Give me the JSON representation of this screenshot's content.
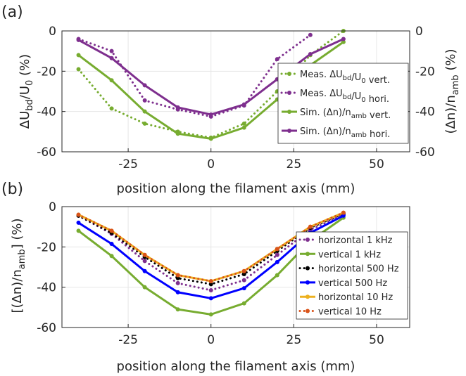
{
  "figure": {
    "colors": {
      "green": "#77ac30",
      "purple": "#7e2f8e",
      "black": "#000000",
      "blue": "#0000ff",
      "yellow": "#edb120",
      "orange": "#d95319"
    }
  },
  "chart_data": [
    {
      "type": "line",
      "panel_label": "(a)",
      "xlabel": "position along the filament axis (mm)",
      "ylabel_left": "ΔU_bd/U_0 (%)",
      "ylabel_right": "(Δn)/n_amb (%)",
      "xlim": [
        -45,
        60
      ],
      "ylim": [
        -60,
        0
      ],
      "ylim_right": [
        -60,
        0
      ],
      "xticks": [
        -25,
        0,
        25,
        50
      ],
      "yticks": [
        0,
        -20,
        -40,
        -60
      ],
      "grid": true,
      "legend_position": "right-middle",
      "series": [
        {
          "name": "Meas. ΔU_bd/U_0 vert.",
          "color": "#77ac30",
          "style": "dotted",
          "x": [
            -40,
            -30,
            -20,
            -10,
            0,
            10,
            20,
            30,
            40
          ],
          "y": [
            -19,
            -38.5,
            -46,
            -50,
            -53,
            -46,
            -30,
            -12,
            0
          ]
        },
        {
          "name": "Meas. ΔU_bd/U_0 hori.",
          "color": "#7e2f8e",
          "style": "dotted",
          "x": [
            -40,
            -30,
            -20,
            -10,
            0,
            10,
            20,
            30
          ],
          "y": [
            -4,
            -10,
            -34.5,
            -39,
            -42.5,
            -37,
            -14,
            -2
          ]
        },
        {
          "name": "Sim. (Δn)/n_amb vert.",
          "color": "#77ac30",
          "style": "solid",
          "x": [
            -40,
            -30,
            -20,
            -10,
            0,
            10,
            20,
            30,
            40
          ],
          "y": [
            -12,
            -24.5,
            -40,
            -51,
            -53.5,
            -48,
            -34,
            -17,
            -5.5
          ]
        },
        {
          "name": "Sim. (Δn)/n_amb hori.",
          "color": "#7e2f8e",
          "style": "solid",
          "x": [
            -40,
            -30,
            -20,
            -10,
            0,
            10,
            20,
            30,
            40
          ],
          "y": [
            -4.5,
            -13.5,
            -27,
            -38,
            -41.5,
            -36.5,
            -24,
            -11.5,
            -4
          ]
        }
      ]
    },
    {
      "type": "line",
      "panel_label": "(b)",
      "xlabel": "position along the filament axis (mm)",
      "ylabel": "[(Δn)/n_amb] (%)",
      "xlim": [
        -45,
        60
      ],
      "ylim": [
        -60,
        0
      ],
      "xticks": [
        -25,
        0,
        25,
        50
      ],
      "yticks": [
        0,
        -20,
        -40,
        -60
      ],
      "grid": true,
      "legend_position": "right-middle",
      "series": [
        {
          "name": "horizontal 1 kHz",
          "color": "#7e2f8e",
          "style": "dotted",
          "x": [
            -40,
            -30,
            -20,
            -10,
            0,
            10,
            20,
            30,
            40
          ],
          "y": [
            -4.5,
            -13.5,
            -27,
            -38,
            -41.5,
            -36.5,
            -24,
            -11.5,
            -4
          ]
        },
        {
          "name": "vertical 1 kHz",
          "color": "#77ac30",
          "style": "solid",
          "x": [
            -40,
            -30,
            -20,
            -10,
            0,
            10,
            20,
            30,
            40
          ],
          "y": [
            -12,
            -24.5,
            -40,
            -51,
            -53.5,
            -48,
            -34,
            -17,
            -5.5
          ]
        },
        {
          "name": "horizontal 500 Hz",
          "color": "#000000",
          "style": "dotted",
          "x": [
            -40,
            -30,
            -20,
            -10,
            0,
            10,
            20,
            30,
            40
          ],
          "y": [
            -4.5,
            -13,
            -25,
            -35.5,
            -38.5,
            -33.5,
            -22,
            -10.5,
            -3.5
          ]
        },
        {
          "name": "vertical 500 Hz",
          "color": "#0000ff",
          "style": "solid",
          "x": [
            -40,
            -30,
            -20,
            -10,
            0,
            10,
            20,
            30,
            40
          ],
          "y": [
            -8,
            -18.5,
            -32,
            -42.5,
            -45.5,
            -40.5,
            -27.5,
            -13,
            -4.5
          ]
        },
        {
          "name": "horizontal 10 Hz",
          "color": "#edb120",
          "style": "solid",
          "x": [
            -40,
            -30,
            -20,
            -10,
            0,
            10,
            20,
            30,
            40
          ],
          "y": [
            -4,
            -12,
            -24,
            -34,
            -37,
            -32,
            -21,
            -10,
            -3
          ]
        },
        {
          "name": "vertical 10 Hz",
          "color": "#d95319",
          "style": "dotted",
          "x": [
            -40,
            -30,
            -20,
            -10,
            0,
            10,
            20,
            30,
            40
          ],
          "y": [
            -4,
            -12,
            -24,
            -34,
            -37,
            -32,
            -21,
            -10,
            -3
          ]
        }
      ]
    }
  ]
}
